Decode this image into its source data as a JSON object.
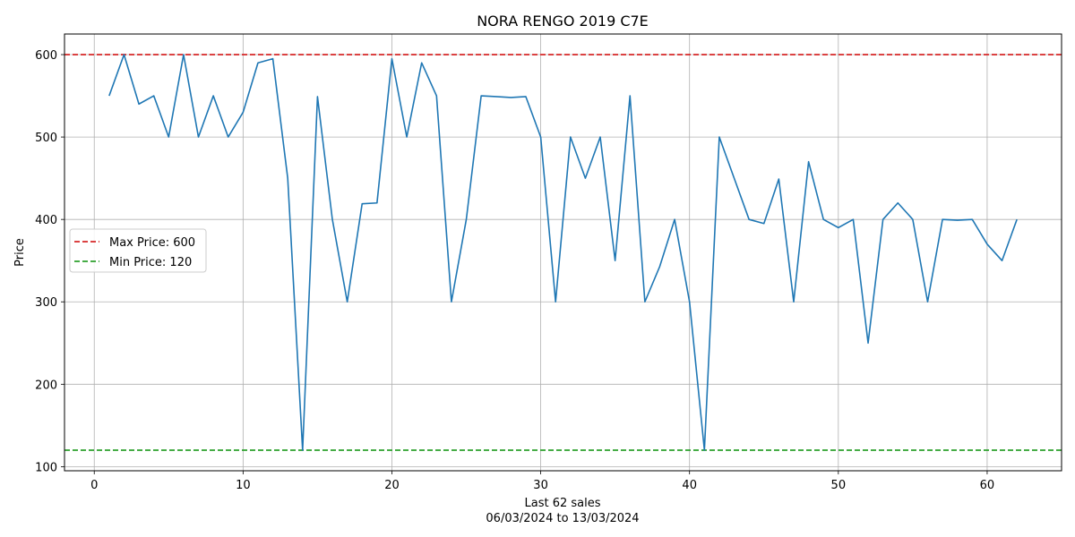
{
  "chart_data": {
    "type": "line",
    "title": "NORA RENGO 2019 C7E",
    "xlabel": "Last 62 sales",
    "xlabel_sub": "06/03/2024 to 13/03/2024",
    "ylabel": "Price",
    "xlim": [
      -2,
      65
    ],
    "ylim": [
      95,
      625
    ],
    "xticks": [
      0,
      10,
      20,
      30,
      40,
      50,
      60
    ],
    "yticks": [
      100,
      200,
      300,
      400,
      500,
      600
    ],
    "grid": true,
    "legend_position": "center-left",
    "series": [
      {
        "color": "#1f77b4",
        "x": [
          1,
          2,
          3,
          4,
          5,
          6,
          7,
          8,
          9,
          10,
          11,
          12,
          13,
          14,
          15,
          16,
          17,
          18,
          19,
          20,
          21,
          22,
          23,
          24,
          25,
          26,
          27,
          28,
          29,
          30,
          31,
          32,
          33,
          34,
          35,
          36,
          37,
          38,
          39,
          40,
          41,
          42,
          43,
          44,
          45,
          46,
          47,
          48,
          49,
          50,
          51,
          52,
          53,
          54,
          55,
          56,
          57,
          58,
          59,
          60,
          61,
          62
        ],
        "values": [
          550,
          600,
          540,
          550,
          500,
          600,
          500,
          550,
          500,
          530,
          590,
          595,
          450,
          120,
          549,
          400,
          300,
          419,
          420,
          595,
          500,
          590,
          550,
          300,
          400,
          550,
          549,
          548,
          549,
          500,
          300,
          500,
          450,
          500,
          350,
          550,
          300,
          343,
          400,
          300,
          120,
          500,
          450,
          400,
          395,
          449,
          300,
          470,
          400,
          390,
          400,
          250,
          400,
          420,
          400,
          300,
          400,
          399,
          400,
          370,
          350,
          400
        ]
      }
    ],
    "reference_lines": [
      {
        "name": "Max Price: 600",
        "value": 600,
        "color": "#d62728",
        "style": "dashed"
      },
      {
        "name": "Min Price: 120",
        "value": 120,
        "color": "#2ca02c",
        "style": "dashed"
      }
    ]
  }
}
